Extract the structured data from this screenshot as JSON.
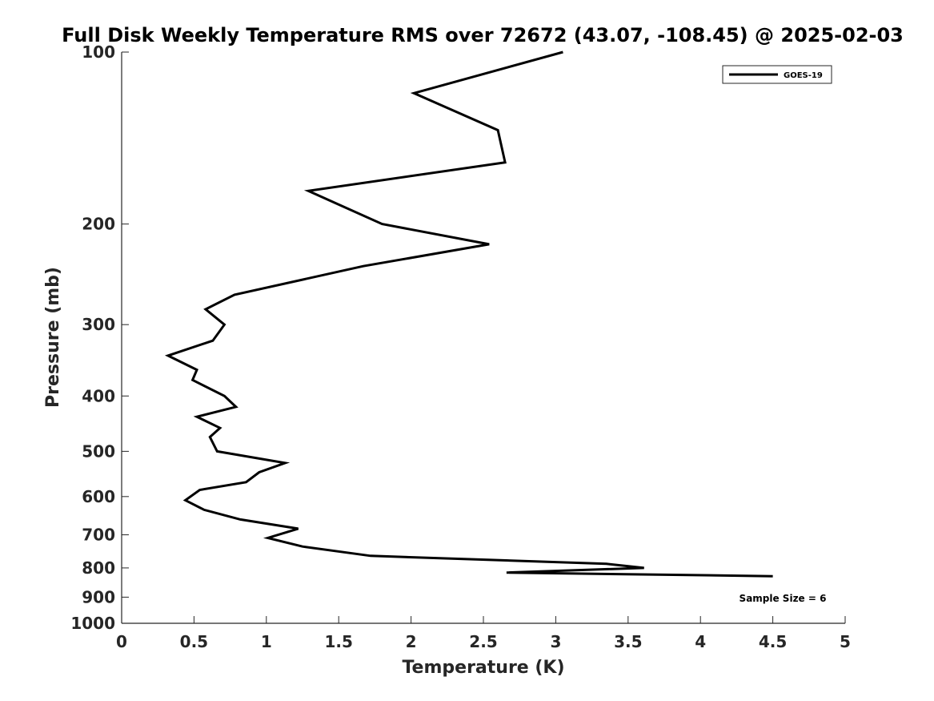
{
  "chart_data": {
    "type": "line",
    "title": "Full Disk Weekly Temperature RMS over 72672 (43.07, -108.45) @ 2025-02-03",
    "xlabel": "Temperature (K)",
    "ylabel": "Pressure (mb)",
    "xlim": [
      0,
      5
    ],
    "ylim": [
      1000,
      100
    ],
    "y_scale": "log",
    "y_reversed": true,
    "grid": false,
    "legend_position": "top-right",
    "x_ticks": [
      0,
      0.5,
      1,
      1.5,
      2,
      2.5,
      3,
      3.5,
      4,
      4.5,
      5
    ],
    "x_tick_labels": [
      "0",
      "0.5",
      "1",
      "1.5",
      "2",
      "2.5",
      "3",
      "3.5",
      "4",
      "4.5",
      "5"
    ],
    "y_ticks": [
      100,
      200,
      300,
      400,
      500,
      600,
      700,
      800,
      900,
      1000
    ],
    "y_tick_labels": [
      "100",
      "200",
      "300",
      "400",
      "500",
      "600",
      "700",
      "800",
      "900",
      "1000"
    ],
    "series": [
      {
        "name": "GOES-19",
        "color": "#000000",
        "points": [
          [
            3.05,
            100
          ],
          [
            2.02,
            118
          ],
          [
            2.6,
            137
          ],
          [
            2.65,
            156
          ],
          [
            1.29,
            175
          ],
          [
            1.8,
            200
          ],
          [
            2.54,
            217
          ],
          [
            1.67,
            237
          ],
          [
            0.78,
            266
          ],
          [
            0.58,
            282
          ],
          [
            0.71,
            300
          ],
          [
            0.63,
            320
          ],
          [
            0.32,
            340
          ],
          [
            0.52,
            360
          ],
          [
            0.49,
            375
          ],
          [
            0.71,
            400
          ],
          [
            0.79,
            418
          ],
          [
            0.52,
            435
          ],
          [
            0.68,
            455
          ],
          [
            0.61,
            472
          ],
          [
            0.66,
            500
          ],
          [
            1.13,
            524
          ],
          [
            0.95,
            544
          ],
          [
            0.86,
            566
          ],
          [
            0.54,
            584
          ],
          [
            0.44,
            609
          ],
          [
            0.57,
            633
          ],
          [
            0.82,
            658
          ],
          [
            1.22,
            683
          ],
          [
            1.01,
            709
          ],
          [
            1.25,
            734
          ],
          [
            1.72,
            762
          ],
          [
            3.35,
            787
          ],
          [
            3.61,
            800
          ],
          [
            2.66,
            815
          ],
          [
            4.5,
            827
          ]
        ]
      }
    ],
    "annotations": [
      {
        "text": "Sample Size = 6",
        "position": "bottom-right"
      }
    ]
  }
}
